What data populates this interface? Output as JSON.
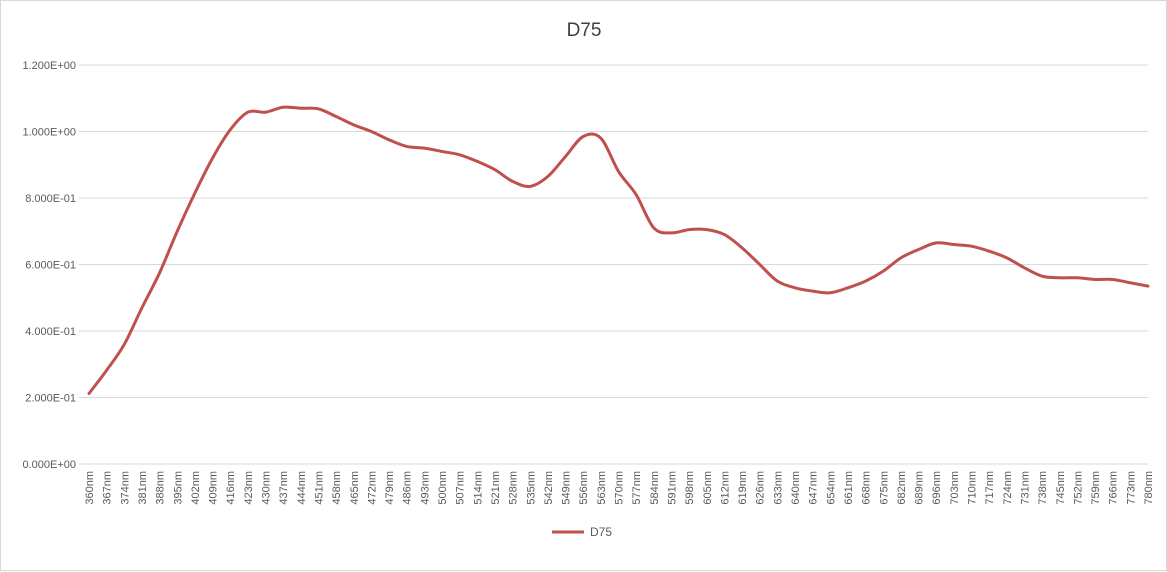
{
  "chart_data": {
    "type": "line",
    "title": "D75",
    "xlabel": "",
    "ylabel": "",
    "ylim": [
      0,
      1.2
    ],
    "yticks": [
      "0.000E+00",
      "2.000E-01",
      "4.000E-01",
      "6.000E-01",
      "8.000E-01",
      "1.000E+00",
      "1.200E+00"
    ],
    "x": [
      "360nm",
      "367nm",
      "374nm",
      "381nm",
      "388nm",
      "395nm",
      "402nm",
      "409nm",
      "416nm",
      "423nm",
      "430nm",
      "437nm",
      "444nm",
      "451nm",
      "458nm",
      "465nm",
      "472nm",
      "479nm",
      "486nm",
      "493nm",
      "500nm",
      "507nm",
      "514nm",
      "521nm",
      "528nm",
      "535nm",
      "542nm",
      "549nm",
      "556nm",
      "563nm",
      "570nm",
      "577nm",
      "584nm",
      "591nm",
      "598nm",
      "605nm",
      "612nm",
      "619nm",
      "626nm",
      "633nm",
      "640nm",
      "647nm",
      "654nm",
      "661nm",
      "668nm",
      "675nm",
      "682nm",
      "689nm",
      "696nm",
      "703nm",
      "710nm",
      "717nm",
      "724nm",
      "731nm",
      "738nm",
      "745nm",
      "752nm",
      "759nm",
      "766nm",
      "773nm",
      "780nm"
    ],
    "grid": true,
    "legend_position": "bottom",
    "series": [
      {
        "name": "D75",
        "color": "#c0504d",
        "values": [
          0.212,
          0.282,
          0.36,
          0.47,
          0.575,
          0.7,
          0.815,
          0.92,
          1.005,
          1.058,
          1.058,
          1.073,
          1.07,
          1.068,
          1.045,
          1.02,
          1.0,
          0.975,
          0.955,
          0.95,
          0.94,
          0.93,
          0.91,
          0.885,
          0.85,
          0.835,
          0.865,
          0.925,
          0.985,
          0.98,
          0.88,
          0.81,
          0.71,
          0.695,
          0.705,
          0.705,
          0.69,
          0.65,
          0.6,
          0.55,
          0.53,
          0.52,
          0.515,
          0.53,
          0.55,
          0.58,
          0.62,
          0.645,
          0.665,
          0.66,
          0.655,
          0.64,
          0.62,
          0.59,
          0.565,
          0.56,
          0.56,
          0.555,
          0.555,
          0.545,
          0.535
        ]
      }
    ]
  }
}
